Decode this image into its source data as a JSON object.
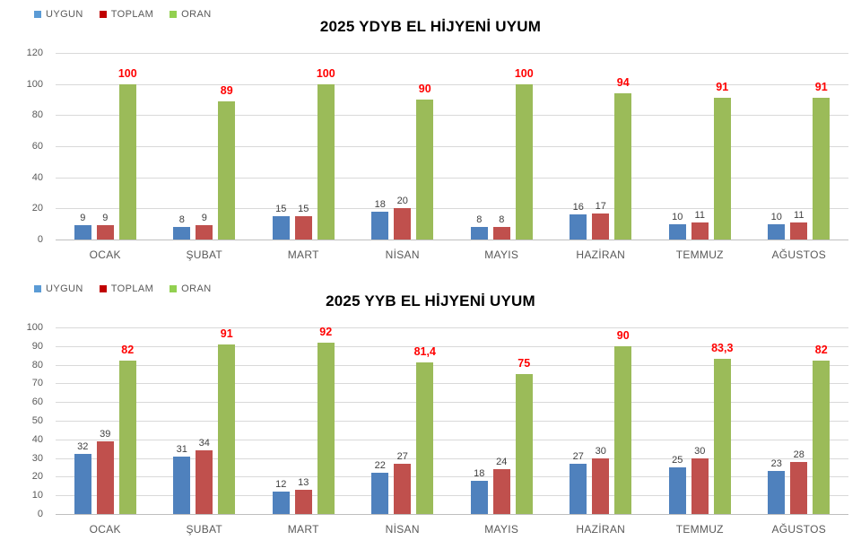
{
  "page": {
    "background": "#FFFFFF"
  },
  "styles": {
    "grid_color": "#D9D9D9",
    "axis_line_color": "#BFBFBF",
    "title_color": "#000000",
    "axis_text_color": "#595959",
    "value_label_color": "#404040",
    "oran_label_color": "#FF0000"
  },
  "chart_data": [
    {
      "type": "bar",
      "title": "2025 YDYB EL HİJYENİ UYUM",
      "legend_position": "top-left",
      "grid": true,
      "legend": [
        {
          "label": "UYGUN",
          "marker_color": "#5B9BD5"
        },
        {
          "label": "TOPLAM",
          "marker_color": "#C00000"
        },
        {
          "label": "ORAN",
          "marker_color": "#92D050"
        }
      ],
      "categories": [
        "OCAK",
        "ŞUBAT",
        "MART",
        "NİSAN",
        "MAYIS",
        "HAZİRAN",
        "TEMMUZ",
        "AĞUSTOS"
      ],
      "ylim": [
        0,
        120
      ],
      "yticks": [
        0,
        20,
        40,
        60,
        80,
        100,
        120
      ],
      "series": [
        {
          "name": "UYGUN",
          "color": "#4F81BD",
          "label_color": "#404040",
          "label_bold": false,
          "values": [
            9,
            8,
            15,
            18,
            8,
            16,
            10,
            10
          ],
          "labels": [
            "9",
            "8",
            "15",
            "18",
            "8",
            "16",
            "10",
            "10"
          ]
        },
        {
          "name": "TOPLAM",
          "color": "#C0504D",
          "label_color": "#404040",
          "label_bold": false,
          "values": [
            9,
            9,
            15,
            20,
            8,
            17,
            11,
            11
          ],
          "labels": [
            "9",
            "9",
            "15",
            "20",
            "8",
            "17",
            "11",
            "11"
          ]
        },
        {
          "name": "ORAN",
          "color": "#9BBB59",
          "label_color": "#FF0000",
          "label_bold": true,
          "values": [
            100,
            89,
            100,
            90,
            100,
            94,
            91,
            91
          ],
          "labels": [
            "100",
            "89",
            "100",
            "90",
            "100",
            "94",
            "91",
            "91"
          ]
        }
      ]
    },
    {
      "type": "bar",
      "title": "2025 YYB EL HİJYENİ UYUM",
      "legend_position": "top-left",
      "grid": true,
      "legend": [
        {
          "label": "UYGUN",
          "marker_color": "#5B9BD5"
        },
        {
          "label": "TOPLAM",
          "marker_color": "#C00000"
        },
        {
          "label": "ORAN",
          "marker_color": "#92D050"
        }
      ],
      "categories": [
        "OCAK",
        "ŞUBAT",
        "MART",
        "NİSAN",
        "MAYIS",
        "HAZİRAN",
        "TEMMUZ",
        "AĞUSTOS"
      ],
      "ylim": [
        0,
        100
      ],
      "yticks": [
        0,
        10,
        20,
        30,
        40,
        50,
        60,
        70,
        80,
        90,
        100
      ],
      "series": [
        {
          "name": "UYGUN",
          "color": "#4F81BD",
          "label_color": "#404040",
          "label_bold": false,
          "values": [
            32,
            31,
            12,
            22,
            18,
            27,
            25,
            23
          ],
          "labels": [
            "32",
            "31",
            "12",
            "22",
            "18",
            "27",
            "25",
            "23"
          ]
        },
        {
          "name": "TOPLAM",
          "color": "#C0504D",
          "label_color": "#404040",
          "label_bold": false,
          "values": [
            39,
            34,
            13,
            27,
            24,
            30,
            30,
            28
          ],
          "labels": [
            "39",
            "34",
            "13",
            "27",
            "24",
            "30",
            "30",
            "28"
          ]
        },
        {
          "name": "ORAN",
          "color": "#9BBB59",
          "label_color": "#FF0000",
          "label_bold": true,
          "values": [
            82,
            91,
            92,
            81.4,
            75,
            90,
            83.3,
            82
          ],
          "labels": [
            "82",
            "91",
            "92",
            "81,4",
            "75",
            "90",
            "83,3",
            "82"
          ]
        }
      ]
    }
  ]
}
